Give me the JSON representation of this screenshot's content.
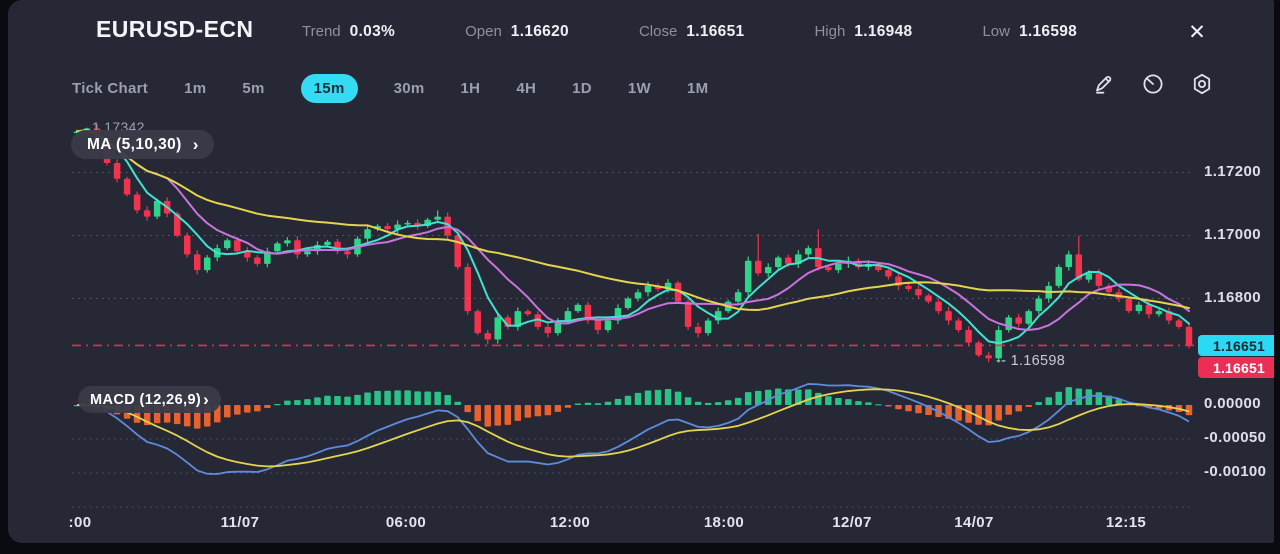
{
  "header": {
    "title": "EURUSD-ECN",
    "stats": [
      {
        "label": "Trend",
        "value": "0.03%"
      },
      {
        "label": "Open",
        "value": "1.16620"
      },
      {
        "label": "Close",
        "value": "1.16651"
      },
      {
        "label": "High",
        "value": "1.16948"
      },
      {
        "label": "Low",
        "value": "1.16598"
      }
    ]
  },
  "icons": {
    "close": "✕",
    "chevron": "›",
    "macd_chevron": "❯"
  },
  "toolbar": {
    "tabs": [
      {
        "label": "Tick Chart",
        "active": false
      },
      {
        "label": "1m",
        "active": false
      },
      {
        "label": "5m",
        "active": false
      },
      {
        "label": "15m",
        "active": true
      },
      {
        "label": "30m",
        "active": false
      },
      {
        "label": "1H",
        "active": false
      },
      {
        "label": "4H",
        "active": false
      },
      {
        "label": "1D",
        "active": false
      },
      {
        "label": "1W",
        "active": false
      },
      {
        "label": "1M",
        "active": false
      }
    ],
    "icon_names": [
      "draw-icon",
      "timer-icon",
      "settings-icon"
    ]
  },
  "chart_data": {
    "type": "candlestick",
    "symbol": "EURUSD-ECN",
    "timeframe": "15m",
    "grid": true,
    "price_axis": {
      "ticks": [
        {
          "label": "1.17200",
          "price": 1.172
        },
        {
          "label": "1.17000",
          "price": 1.17
        },
        {
          "label": "1.16800",
          "price": 1.168
        }
      ],
      "current_price": 1.16651,
      "ask_badge": "1.16651",
      "bid_badge": "1.16651"
    },
    "session_high_label": "1.17342",
    "low_annotation": {
      "text": "-- 1.16598",
      "price": 1.16598
    },
    "ma_indicator": {
      "label": "MA (5,10,30)",
      "periods": [
        5,
        10,
        30
      ],
      "colors": [
        "#3fe3cf",
        "#c973dd",
        "#e5d44f"
      ]
    },
    "macd_indicator": {
      "label": "MACD (12,26,9)",
      "params": [
        12,
        26,
        9
      ],
      "axis_ticks": [
        {
          "label": "0.00000",
          "value": 0
        },
        {
          "label": "-0.00050",
          "value": -0.0005
        },
        {
          "label": "-0.00100",
          "value": -0.001
        }
      ],
      "grid_values": [
        -0.0005,
        -0.001,
        -0.0015
      ],
      "colors": {
        "macd_line": "#5e8bdd",
        "signal_line": "#e5d44f",
        "hist_up": "#2cc187",
        "hist_down": "#e8622f"
      }
    },
    "time_axis": [
      ":00",
      "11/07",
      "06:00",
      "12:00",
      "18:00",
      "12/07",
      "14/07",
      "12:15"
    ],
    "closes": [
      1.1733,
      1.1734,
      1.1729,
      1.1723,
      1.1718,
      1.1713,
      1.1708,
      1.1706,
      1.1711,
      1.1707,
      1.17,
      1.1694,
      1.1689,
      1.1693,
      1.1696,
      1.16985,
      1.1695,
      1.1693,
      1.1691,
      1.1695,
      1.16975,
      1.16985,
      1.1694,
      1.1695,
      1.1697,
      1.1698,
      1.1695,
      1.1694,
      1.1699,
      1.1702,
      1.1703,
      1.1702,
      1.17035,
      1.1704,
      1.1703,
      1.1705,
      1.1706,
      1.17,
      1.169,
      1.1676,
      1.1669,
      1.1667,
      1.1674,
      1.1671,
      1.1676,
      1.1675,
      1.1671,
      1.1669,
      1.1673,
      1.1676,
      1.1678,
      1.1673,
      1.167,
      1.1673,
      1.1677,
      1.168,
      1.1682,
      1.1684,
      1.1683,
      1.1685,
      1.1679,
      1.1671,
      1.1669,
      1.1673,
      1.1676,
      1.1679,
      1.1682,
      1.1692,
      1.1688,
      1.169,
      1.1693,
      1.1691,
      1.1694,
      1.1696,
      1.169,
      1.1689,
      1.1691,
      1.1692,
      1.169,
      1.1691,
      1.1689,
      1.1687,
      1.1684,
      1.1683,
      1.1681,
      1.1679,
      1.1676,
      1.1673,
      1.167,
      1.1666,
      1.1662,
      1.1661,
      1.167,
      1.1674,
      1.1672,
      1.1676,
      1.168,
      1.1684,
      1.169,
      1.1694,
      1.1686,
      1.1688,
      1.1684,
      1.1682,
      1.168,
      1.1676,
      1.1678,
      1.1675,
      1.1676,
      1.1673,
      1.1671,
      1.16651
    ],
    "wick_overrides": {
      "1": {
        "high": 1.17342
      },
      "36": {
        "high": 1.1708
      },
      "41": {
        "low": 1.16655
      },
      "68": {
        "high": 1.17005
      },
      "74": {
        "high": 1.1702
      },
      "91": {
        "low": 1.16598
      },
      "100": {
        "high": 1.17
      }
    },
    "colors": {
      "candle_up": "#2fd488",
      "candle_down": "#f2334d",
      "current_price_line": "#ec2f5b"
    }
  }
}
